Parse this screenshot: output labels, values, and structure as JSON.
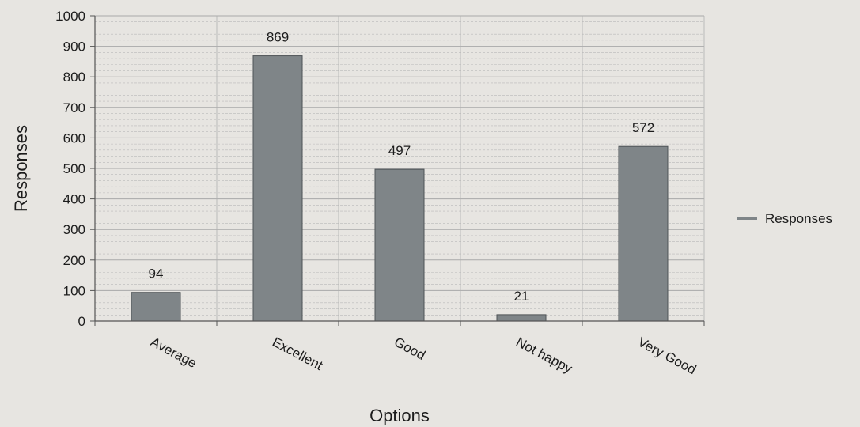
{
  "chart_data": {
    "type": "bar",
    "title": "",
    "xlabel": "Options",
    "ylabel": "Responses",
    "categories": [
      "Average",
      "Excellent",
      "Good",
      "Not happy",
      "Very Good"
    ],
    "series": [
      {
        "name": "Responses",
        "values": [
          94,
          869,
          497,
          21,
          572
        ]
      }
    ],
    "data_labels": [
      "94",
      "869",
      "497",
      "21",
      "572"
    ],
    "ylim": [
      0,
      1000
    ],
    "yticks": [
      0,
      100,
      200,
      300,
      400,
      500,
      600,
      700,
      800,
      900,
      1000
    ],
    "grid": true,
    "legend_position": "right",
    "colors": {
      "bar": "#7f8588",
      "gridline": "#b9b9b9",
      "axis": "#555555",
      "background": "#e7e5e1"
    }
  }
}
